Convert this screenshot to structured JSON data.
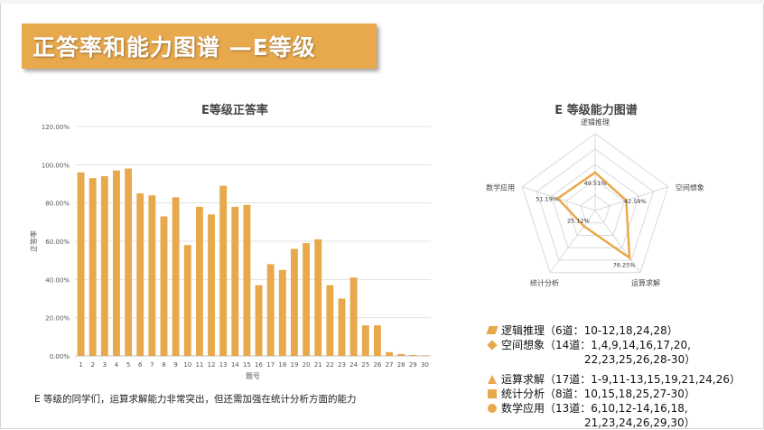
{
  "title": "正答率和能力图谱 —E等级",
  "summary": "E  等级的同学们，运算求解能力非常突出，但还需加强在统计分析方面的能力",
  "colors": {
    "accent": "#e8a84c",
    "radar_line": "#e8a84c"
  },
  "chart_data": [
    {
      "type": "bar",
      "title": "E等级正答率",
      "xlabel": "题号",
      "ylabel": "正答率",
      "ylim": [
        0,
        120
      ],
      "yticks": [
        "0.00%",
        "20.00%",
        "40.00%",
        "60.00%",
        "80.00%",
        "100.00%",
        "120.00%"
      ],
      "categories": [
        "1",
        "2",
        "3",
        "4",
        "5",
        "6",
        "7",
        "8",
        "9",
        "10",
        "11",
        "12",
        "13",
        "14",
        "15",
        "16",
        "17",
        "18",
        "19",
        "20",
        "21",
        "22",
        "23",
        "24",
        "25",
        "26",
        "27",
        "28",
        "29",
        "30"
      ],
      "values": [
        96,
        93,
        94,
        97,
        98,
        85,
        84,
        73,
        83,
        58,
        78,
        74,
        89,
        78,
        79,
        37,
        48,
        45,
        56,
        59,
        61,
        37,
        30,
        41,
        16,
        16,
        2,
        1,
        0.5,
        0.3
      ],
      "grid": true
    },
    {
      "type": "radar",
      "title": "E 等级能力图谱",
      "axes": [
        "逻辑推理",
        "空间想象",
        "运算求解",
        "统计分析",
        "数学应用"
      ],
      "values": [
        49.51,
        42.59,
        76.25,
        25.12,
        51.19
      ],
      "value_labels": [
        "49.51%",
        "42.59%",
        "76.25%",
        "25.12%",
        "51.19%"
      ],
      "rmax": 100,
      "rings": 5
    }
  ],
  "legend": [
    {
      "marker": "parallelogram",
      "label": "逻辑推理（6道：10-12,18,24,28）"
    },
    {
      "marker": "diamond",
      "label": "空间想象（14道：1,4,9,14,16,17,20,",
      "label2": "22,23,25,26,28-30）"
    },
    {
      "marker": "triangle",
      "label": "运算求解（17道：1-9,11-13,15,19,21,24,26）"
    },
    {
      "marker": "square",
      "label": "统计分析（8道：10,15,18,25,27-30）"
    },
    {
      "marker": "circle",
      "label": "数学应用（13道：6,10,12-14,16,18,",
      "label2": "21,23,24,26,29,30）"
    }
  ]
}
